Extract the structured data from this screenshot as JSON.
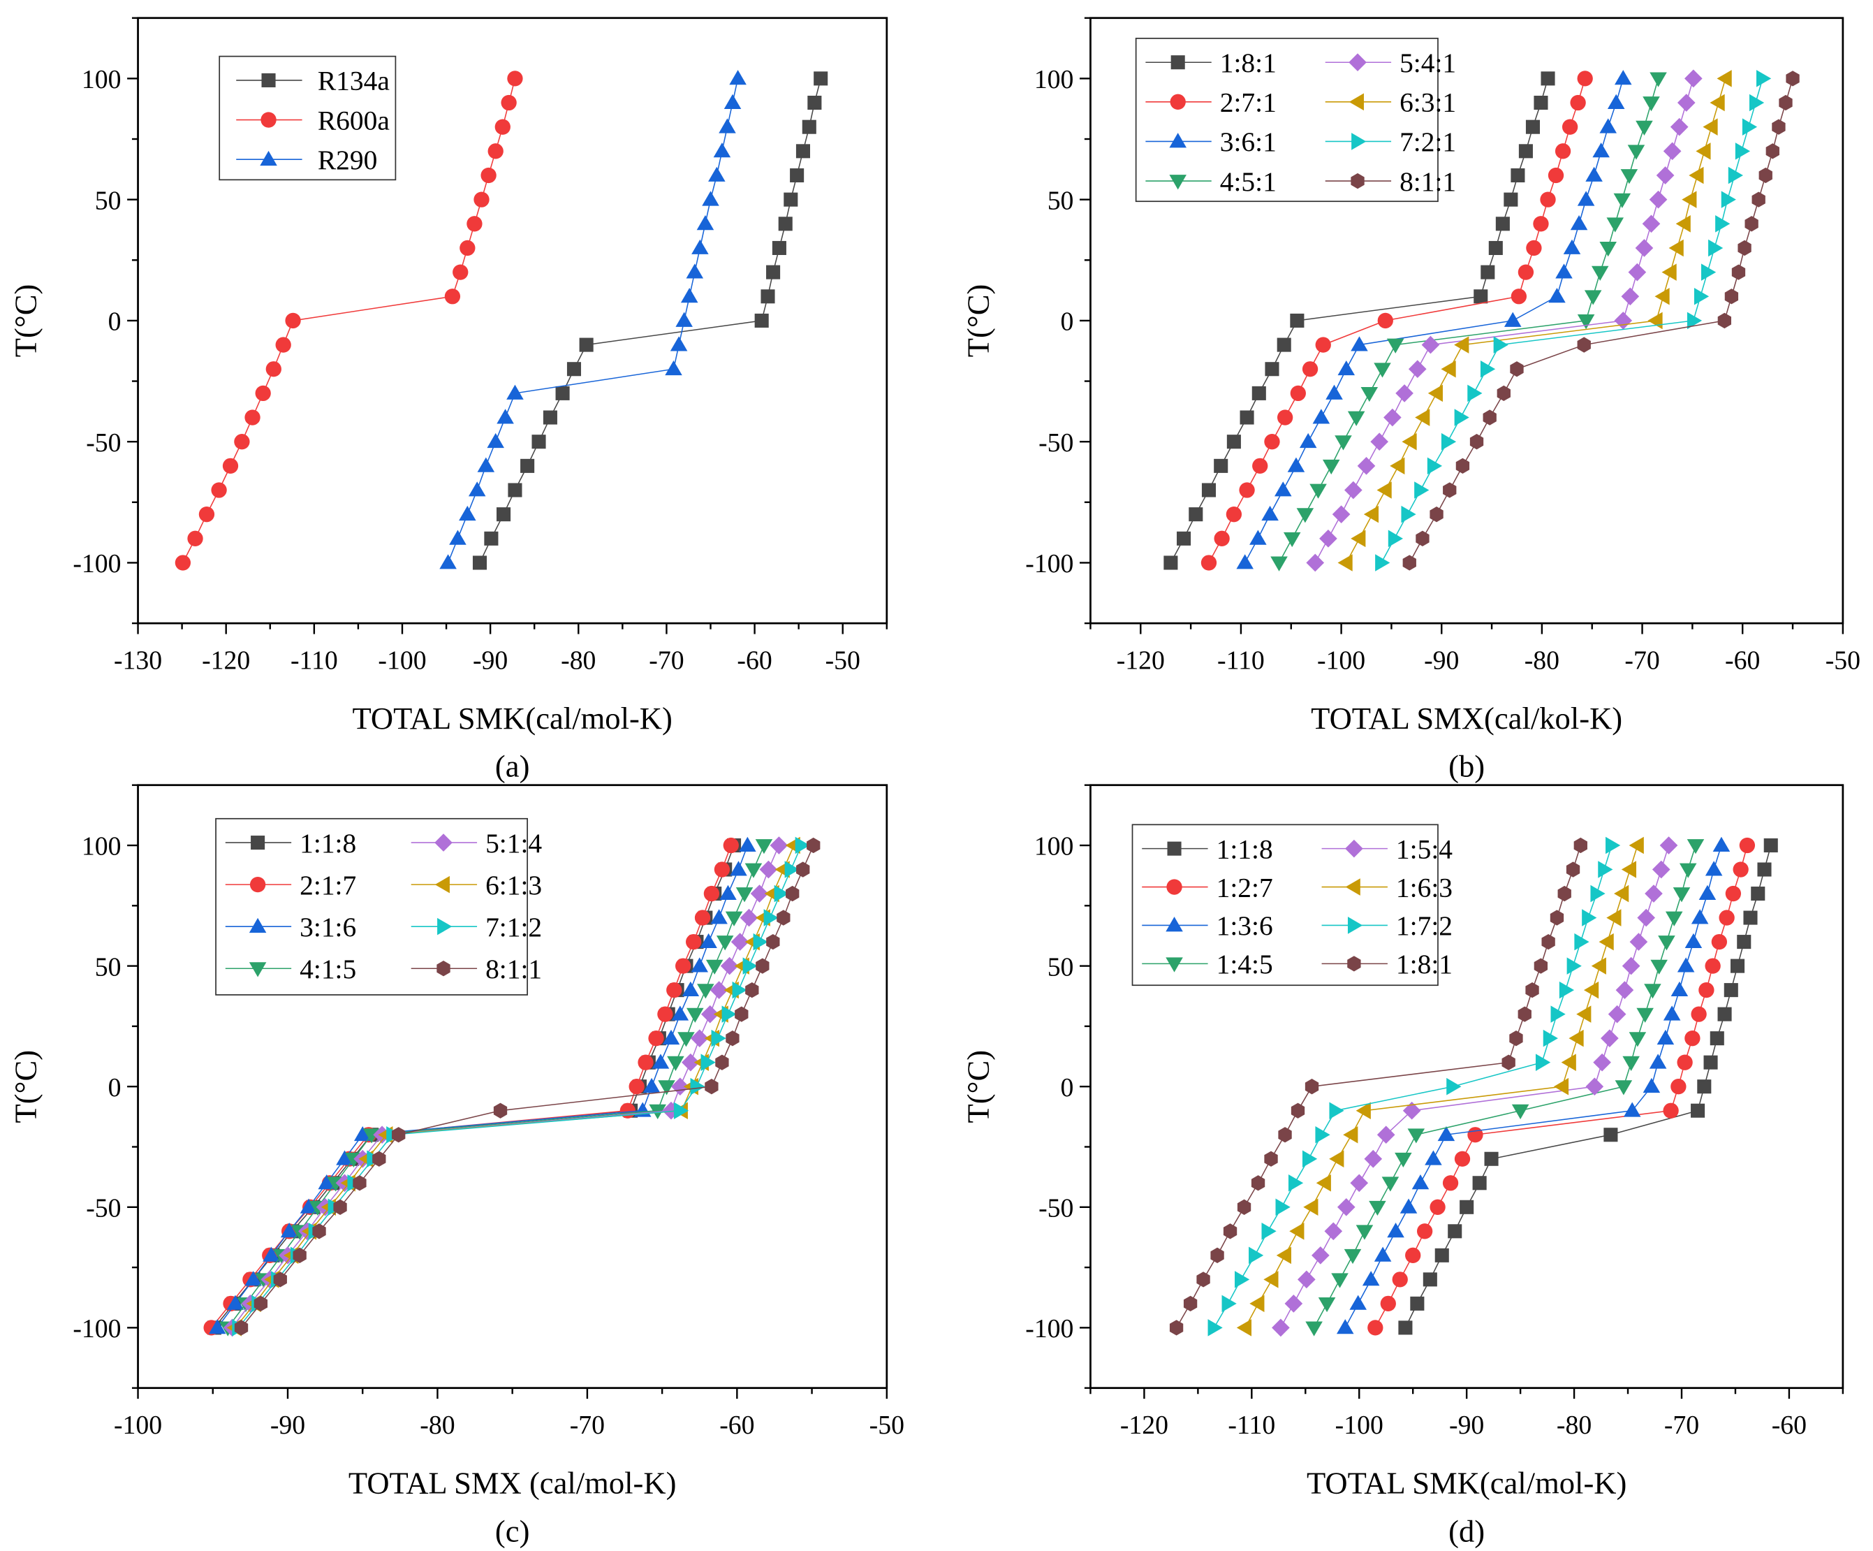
{
  "chart_data": [
    {
      "type": "line",
      "panel_label": "(a)",
      "xlabel": "TOTAL SMK(cal/mol-K)",
      "ylabel": "T(°C)",
      "xlim": [
        -130,
        -45
      ],
      "ylim": [
        -125,
        125
      ],
      "xticks": [
        -130,
        -120,
        -110,
        -100,
        -90,
        -80,
        -70,
        -60,
        -50
      ],
      "yticks": [
        -100,
        -50,
        0,
        50,
        100
      ],
      "grid": false,
      "legend_placement": "top-left",
      "y": [
        -100,
        -90,
        -80,
        -70,
        -60,
        -50,
        -40,
        -30,
        -20,
        -10,
        0,
        10,
        20,
        30,
        40,
        50,
        60,
        70,
        80,
        90,
        100
      ],
      "series": [
        {
          "name": "R134a",
          "color": "#474747",
          "marker": "square",
          "x": [
            -91.2,
            -89.9,
            -88.5,
            -87.2,
            -85.8,
            -84.5,
            -83.2,
            -81.8,
            -80.5,
            -79.1,
            -59.2,
            -58.5,
            -57.9,
            -57.2,
            -56.5,
            -55.9,
            -55.2,
            -54.5,
            -53.8,
            -53.2,
            -52.5
          ]
        },
        {
          "name": "R600a",
          "color": "#f03a3a",
          "marker": "circle",
          "x": [
            -124.9,
            -123.5,
            -122.2,
            -120.8,
            -119.5,
            -118.2,
            -117.0,
            -115.8,
            -114.6,
            -113.5,
            -112.4,
            -94.3,
            -93.4,
            -92.6,
            -91.8,
            -91.0,
            -90.2,
            -89.4,
            -88.6,
            -87.9,
            -87.2
          ]
        },
        {
          "name": "R290",
          "color": "#1764d8",
          "marker": "triangle-up",
          "x": [
            -94.8,
            -93.7,
            -92.6,
            -91.5,
            -90.5,
            -89.4,
            -88.3,
            -87.2,
            -69.2,
            -68.6,
            -68.0,
            -67.4,
            -66.8,
            -66.2,
            -65.6,
            -65.0,
            -64.3,
            -63.7,
            -63.1,
            -62.5,
            -61.9
          ]
        }
      ]
    },
    {
      "type": "line",
      "panel_label": "(b)",
      "xlabel": "TOTAL SMX(cal/kol-K)",
      "ylabel": "T(°C)",
      "xlim": [
        -125,
        -50
      ],
      "ylim": [
        -125,
        125
      ],
      "xticks": [
        -120,
        -110,
        -100,
        -90,
        -80,
        -70,
        -60,
        -50
      ],
      "yticks": [
        -100,
        -50,
        0,
        50,
        100
      ],
      "grid": false,
      "legend_placement": "top-left",
      "y": [
        -100,
        -90,
        -80,
        -70,
        -60,
        -50,
        -40,
        -30,
        -20,
        -10,
        0,
        10,
        20,
        30,
        40,
        50,
        60,
        70,
        80,
        90,
        100
      ],
      "series": [
        {
          "name": "1:8:1",
          "color": "#474747",
          "marker": "square",
          "x": [
            -117.0,
            -115.7,
            -114.5,
            -113.2,
            -112.0,
            -110.7,
            -109.4,
            -108.2,
            -106.9,
            -105.7,
            -104.4,
            -86.1,
            -85.4,
            -84.6,
            -83.9,
            -83.1,
            -82.4,
            -81.6,
            -80.9,
            -80.1,
            -79.4
          ]
        },
        {
          "name": "2:7:1",
          "color": "#f03a3a",
          "marker": "circle",
          "x": [
            -113.2,
            -111.9,
            -110.7,
            -109.4,
            -108.1,
            -106.9,
            -105.6,
            -104.3,
            -103.1,
            -101.8,
            -95.6,
            -82.3,
            -81.6,
            -80.8,
            -80.1,
            -79.4,
            -78.6,
            -77.9,
            -77.2,
            -76.4,
            -75.7
          ]
        },
        {
          "name": "3:6:1",
          "color": "#1764d8",
          "marker": "triangle-up",
          "x": [
            -109.6,
            -108.3,
            -107.1,
            -105.8,
            -104.5,
            -103.3,
            -102.0,
            -100.7,
            -99.5,
            -98.2,
            -82.9,
            -78.5,
            -77.8,
            -77.0,
            -76.3,
            -75.6,
            -74.8,
            -74.1,
            -73.4,
            -72.6,
            -71.9
          ]
        },
        {
          "name": "4:5:1",
          "color": "#2ca26a",
          "marker": "triangle-down",
          "x": [
            -106.2,
            -104.9,
            -103.6,
            -102.3,
            -101.0,
            -99.8,
            -98.5,
            -97.2,
            -95.9,
            -94.6,
            -75.6,
            -74.9,
            -74.2,
            -73.4,
            -72.7,
            -72.0,
            -71.3,
            -70.6,
            -69.8,
            -69.1,
            -68.4
          ]
        },
        {
          "name": "5:4:1",
          "color": "#b070d8",
          "marker": "diamond",
          "x": [
            -102.6,
            -101.3,
            -100.0,
            -98.8,
            -97.5,
            -96.2,
            -94.9,
            -93.7,
            -92.4,
            -91.1,
            -71.9,
            -71.2,
            -70.5,
            -69.8,
            -69.1,
            -68.4,
            -67.7,
            -67.0,
            -66.3,
            -65.6,
            -64.9
          ]
        },
        {
          "name": "6:3:1",
          "color": "#c99a06",
          "marker": "triangle-left",
          "x": [
            -99.5,
            -98.2,
            -96.9,
            -95.6,
            -94.3,
            -93.1,
            -91.8,
            -90.5,
            -89.2,
            -87.9,
            -68.6,
            -67.9,
            -67.2,
            -66.5,
            -65.8,
            -65.2,
            -64.5,
            -63.8,
            -63.1,
            -62.4,
            -61.7
          ]
        },
        {
          "name": "7:2:1",
          "color": "#16c6c6",
          "marker": "triangle-right",
          "x": [
            -96.0,
            -94.7,
            -93.4,
            -92.1,
            -90.8,
            -89.4,
            -88.1,
            -86.8,
            -85.5,
            -84.2,
            -64.9,
            -64.2,
            -63.5,
            -62.8,
            -62.1,
            -61.5,
            -60.8,
            -60.1,
            -59.4,
            -58.7,
            -58.0
          ]
        },
        {
          "name": "8:1:1",
          "color": "#7a4448",
          "marker": "hexagon",
          "x": [
            -93.2,
            -91.9,
            -90.5,
            -89.2,
            -87.9,
            -86.5,
            -85.2,
            -83.8,
            -82.5,
            -75.8,
            -61.8,
            -61.1,
            -60.4,
            -59.8,
            -59.1,
            -58.4,
            -57.7,
            -57.0,
            -56.4,
            -55.7,
            -55.0
          ]
        }
      ]
    },
    {
      "type": "line",
      "panel_label": "(c)",
      "xlabel": "TOTAL SMX (cal/mol-K)",
      "ylabel": "T(°C)",
      "xlim": [
        -100,
        -50
      ],
      "ylim": [
        -125,
        125
      ],
      "xticks": [
        -100,
        -90,
        -80,
        -70,
        -60,
        -50
      ],
      "yticks": [
        -100,
        -50,
        0,
        50,
        100
      ],
      "grid": false,
      "legend_placement": "top-left",
      "y": [
        -100,
        -90,
        -80,
        -70,
        -60,
        -50,
        -40,
        -30,
        -20,
        -10,
        0,
        10,
        20,
        30,
        40,
        50,
        60,
        70,
        80,
        90,
        100
      ],
      "series": [
        {
          "name": "1:1:8",
          "color": "#474747",
          "marker": "square",
          "x": [
            -94.9,
            -93.6,
            -92.3,
            -91.0,
            -89.7,
            -88.3,
            -87.0,
            -85.7,
            -84.4,
            -67.1,
            -66.5,
            -65.9,
            -65.2,
            -64.6,
            -64.0,
            -63.4,
            -62.7,
            -62.1,
            -61.5,
            -60.8,
            -60.2
          ]
        },
        {
          "name": "2:1:7",
          "color": "#f03a3a",
          "marker": "circle",
          "x": [
            -95.1,
            -93.8,
            -92.5,
            -91.2,
            -89.9,
            -88.5,
            -87.2,
            -85.9,
            -84.6,
            -67.3,
            -66.7,
            -66.1,
            -65.4,
            -64.8,
            -64.2,
            -63.6,
            -62.9,
            -62.3,
            -61.7,
            -61.0,
            -60.4
          ]
        },
        {
          "name": "3:1:6",
          "color": "#1764d8",
          "marker": "triangle-up",
          "x": [
            -94.7,
            -93.5,
            -92.3,
            -91.1,
            -89.9,
            -88.6,
            -87.4,
            -86.2,
            -85.0,
            -66.3,
            -65.7,
            -65.1,
            -64.4,
            -63.8,
            -63.1,
            -62.5,
            -61.9,
            -61.2,
            -60.6,
            -59.9,
            -59.3
          ]
        },
        {
          "name": "4:1:5",
          "color": "#2ca26a",
          "marker": "triangle-down",
          "x": [
            -94.0,
            -92.8,
            -91.6,
            -90.4,
            -89.2,
            -88.0,
            -86.8,
            -85.6,
            -84.4,
            -65.3,
            -64.7,
            -64.1,
            -63.4,
            -62.8,
            -62.1,
            -61.5,
            -60.8,
            -60.2,
            -59.5,
            -58.9,
            -58.2
          ]
        },
        {
          "name": "5:1:4",
          "color": "#b070d8",
          "marker": "diamond",
          "x": [
            -93.7,
            -92.5,
            -91.2,
            -90.0,
            -88.7,
            -87.5,
            -86.2,
            -85.0,
            -83.7,
            -64.4,
            -63.8,
            -63.1,
            -62.5,
            -61.8,
            -61.2,
            -60.5,
            -59.8,
            -59.2,
            -58.5,
            -57.9,
            -57.2
          ]
        },
        {
          "name": "6:1:3",
          "color": "#c99a06",
          "marker": "triangle-left",
          "x": [
            -93.5,
            -92.2,
            -91.0,
            -89.7,
            -88.5,
            -87.2,
            -85.9,
            -84.7,
            -83.4,
            -63.7,
            -63.0,
            -62.3,
            -61.6,
            -61.0,
            -60.3,
            -59.6,
            -58.9,
            -58.2,
            -57.6,
            -56.9,
            -56.2
          ]
        },
        {
          "name": "7:1:2",
          "color": "#16c6c6",
          "marker": "triangle-right",
          "x": [
            -93.3,
            -92.0,
            -90.7,
            -89.4,
            -88.2,
            -86.9,
            -85.6,
            -84.3,
            -83.0,
            -63.8,
            -62.7,
            -62.0,
            -61.3,
            -60.6,
            -59.9,
            -59.2,
            -58.5,
            -57.8,
            -57.1,
            -56.4,
            -55.7
          ]
        },
        {
          "name": "8:1:1",
          "color": "#7a4448",
          "marker": "hexagon",
          "x": [
            -93.1,
            -91.8,
            -90.5,
            -89.2,
            -87.9,
            -86.5,
            -85.2,
            -83.9,
            -82.6,
            -75.8,
            -61.7,
            -61.0,
            -60.3,
            -59.7,
            -59.0,
            -58.3,
            -57.6,
            -56.9,
            -56.3,
            -55.6,
            -54.9
          ]
        }
      ]
    },
    {
      "type": "line",
      "panel_label": "(d)",
      "xlabel": "TOTAL SMK(cal/mol-K)",
      "ylabel": "T(°C)",
      "xlim": [
        -125,
        -55
      ],
      "ylim": [
        -125,
        125
      ],
      "xticks": [
        -120,
        -110,
        -100,
        -90,
        -80,
        -70,
        -60
      ],
      "yticks": [
        -100,
        -50,
        0,
        50,
        100
      ],
      "grid": false,
      "legend_placement": "top-left",
      "y": [
        -100,
        -90,
        -80,
        -70,
        -60,
        -50,
        -40,
        -30,
        -20,
        -10,
        0,
        10,
        20,
        30,
        40,
        50,
        60,
        70,
        80,
        90,
        100
      ],
      "series": [
        {
          "name": "1:1:8",
          "color": "#474747",
          "marker": "square",
          "x": [
            -95.7,
            -94.6,
            -93.4,
            -92.3,
            -91.1,
            -90.0,
            -88.8,
            -87.7,
            -76.6,
            -68.5,
            -67.9,
            -67.3,
            -66.7,
            -66.0,
            -65.4,
            -64.8,
            -64.2,
            -63.6,
            -62.9,
            -62.3,
            -61.7
          ]
        },
        {
          "name": "1:2:7",
          "color": "#f03a3a",
          "marker": "circle",
          "x": [
            -98.5,
            -97.3,
            -96.2,
            -95.0,
            -93.9,
            -92.7,
            -91.5,
            -90.4,
            -89.2,
            -71.0,
            -70.3,
            -69.7,
            -69.0,
            -68.4,
            -67.7,
            -67.1,
            -66.5,
            -65.8,
            -65.2,
            -64.5,
            -63.9
          ]
        },
        {
          "name": "1:3:6",
          "color": "#1764d8",
          "marker": "triangle-up",
          "x": [
            -101.3,
            -100.1,
            -98.9,
            -97.8,
            -96.6,
            -95.4,
            -94.3,
            -93.1,
            -91.9,
            -74.6,
            -72.8,
            -72.2,
            -71.5,
            -70.9,
            -70.2,
            -69.6,
            -68.9,
            -68.3,
            -67.6,
            -67.0,
            -66.3
          ]
        },
        {
          "name": "1:4:5",
          "color": "#2ca26a",
          "marker": "triangle-down",
          "x": [
            -104.2,
            -103.0,
            -101.8,
            -100.6,
            -99.5,
            -98.3,
            -97.1,
            -95.9,
            -94.7,
            -85.0,
            -75.4,
            -74.7,
            -74.1,
            -73.4,
            -72.7,
            -72.1,
            -71.4,
            -70.7,
            -70.0,
            -69.4,
            -68.7
          ]
        },
        {
          "name": "1:5:4",
          "color": "#b070d8",
          "marker": "diamond",
          "x": [
            -107.3,
            -106.1,
            -104.9,
            -103.6,
            -102.4,
            -101.2,
            -100.0,
            -98.7,
            -97.5,
            -95.1,
            -78.1,
            -77.4,
            -76.7,
            -76.0,
            -75.3,
            -74.7,
            -74.0,
            -73.3,
            -72.6,
            -71.9,
            -71.2
          ]
        },
        {
          "name": "1:6:3",
          "color": "#c99a06",
          "marker": "triangle-left",
          "x": [
            -110.6,
            -109.4,
            -108.1,
            -106.9,
            -105.7,
            -104.4,
            -103.2,
            -102.0,
            -100.7,
            -99.5,
            -81.1,
            -80.4,
            -79.7,
            -79.0,
            -78.3,
            -77.6,
            -76.9,
            -76.2,
            -75.5,
            -74.8,
            -74.1
          ]
        },
        {
          "name": "1:7:2",
          "color": "#16c6c6",
          "marker": "triangle-right",
          "x": [
            -113.5,
            -112.2,
            -111.0,
            -109.7,
            -108.5,
            -107.2,
            -106.0,
            -104.7,
            -103.5,
            -102.2,
            -91.3,
            -83.0,
            -82.3,
            -81.6,
            -80.8,
            -80.1,
            -79.4,
            -78.7,
            -77.9,
            -77.2,
            -76.5
          ]
        },
        {
          "name": "1:8:1",
          "color": "#7a4448",
          "marker": "hexagon",
          "x": [
            -117.0,
            -115.7,
            -114.5,
            -113.2,
            -112.0,
            -110.7,
            -109.4,
            -108.2,
            -106.9,
            -105.7,
            -104.4,
            -86.1,
            -85.4,
            -84.6,
            -83.9,
            -83.1,
            -82.4,
            -81.6,
            -80.9,
            -80.1,
            -79.4
          ]
        }
      ]
    }
  ]
}
